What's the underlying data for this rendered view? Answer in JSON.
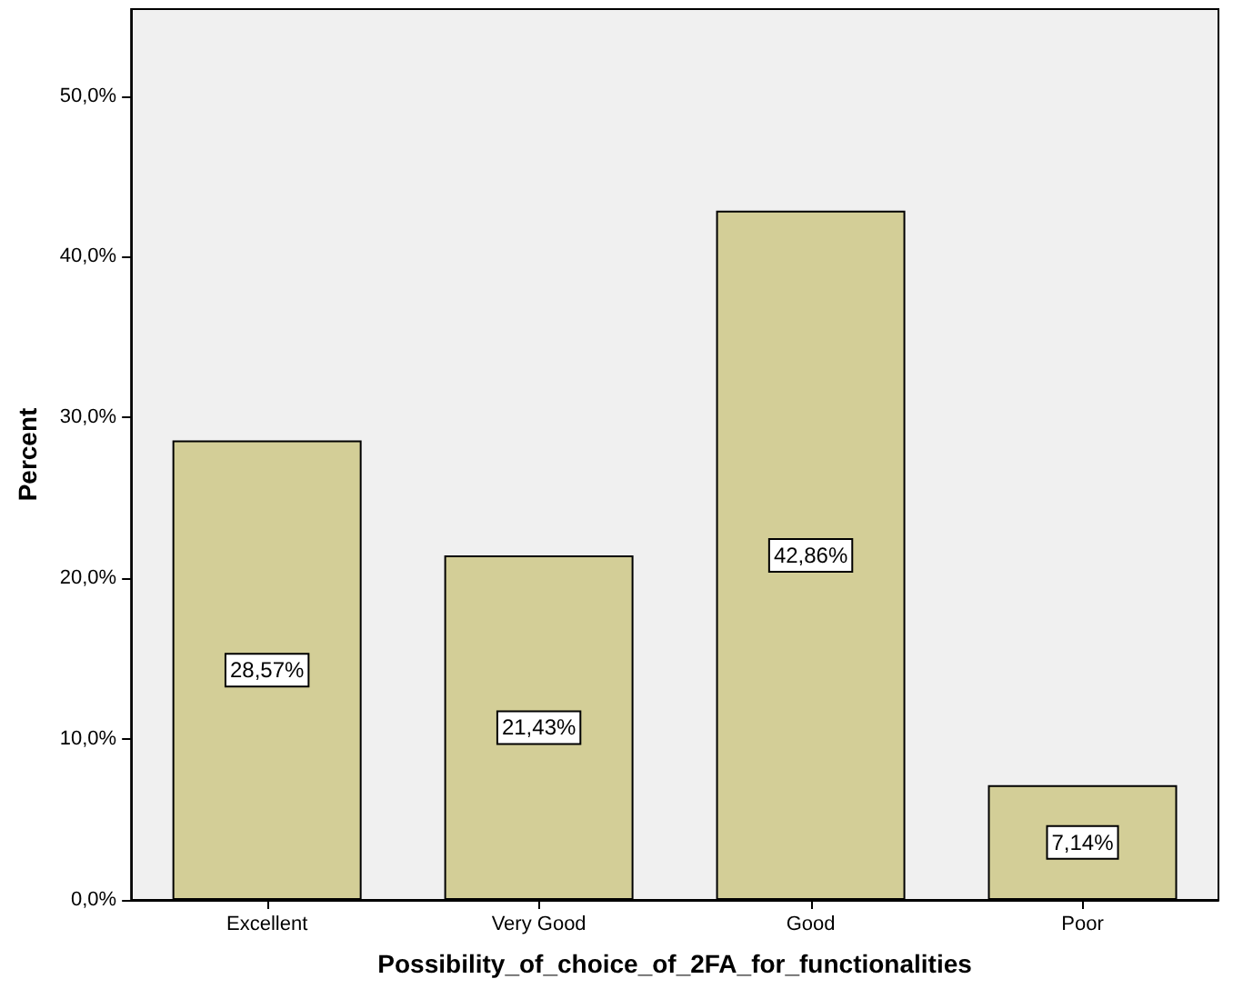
{
  "chart_data": {
    "type": "bar",
    "xlabel": "Possibility_of_choice_of_2FA_for_functionalities",
    "ylabel": "Percent",
    "categories": [
      "Excellent",
      "Very Good",
      "Good",
      "Poor"
    ],
    "values": [
      28.57,
      21.43,
      42.86,
      7.14
    ],
    "value_labels": [
      "28,57%",
      "21,43%",
      "42,86%",
      "7,14%"
    ],
    "color": "#d3ce97",
    "ylim": [
      0,
      55.4
    ],
    "yticks": [
      {
        "value": 0,
        "label": "0,0%"
      },
      {
        "value": 10,
        "label": "10,0%"
      },
      {
        "value": 20,
        "label": "20,0%"
      },
      {
        "value": 30,
        "label": "30,0%"
      },
      {
        "value": 40,
        "label": "40,0%"
      },
      {
        "value": 50,
        "label": "50,0%"
      }
    ],
    "grid": false
  }
}
